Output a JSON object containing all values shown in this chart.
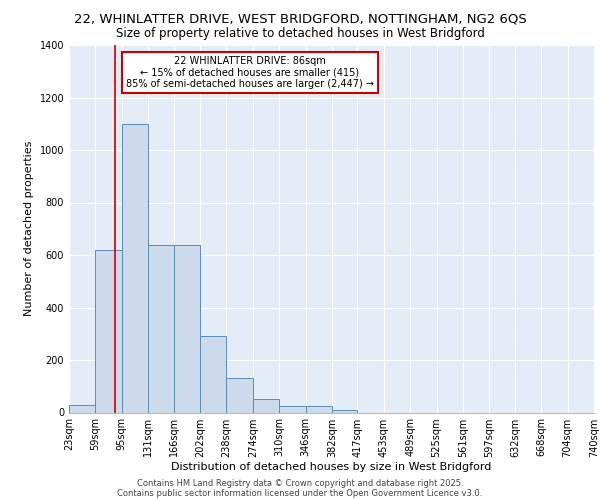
{
  "title1": "22, WHINLATTER DRIVE, WEST BRIDGFORD, NOTTINGHAM, NG2 6QS",
  "title2": "Size of property relative to detached houses in West Bridgford",
  "xlabel": "Distribution of detached houses by size in West Bridgford",
  "ylabel": "Number of detached properties",
  "bin_edges": [
    23,
    59,
    95,
    131,
    166,
    202,
    238,
    274,
    310,
    346,
    382,
    417,
    453,
    489,
    525,
    561,
    597,
    632,
    668,
    704,
    740
  ],
  "bar_heights": [
    30,
    620,
    1100,
    640,
    640,
    290,
    130,
    50,
    25,
    25,
    10,
    0,
    0,
    0,
    0,
    0,
    0,
    0,
    0,
    0
  ],
  "bar_color": "#ccdaeb",
  "bar_edge_color": "#5b8db8",
  "bg_color": "#e4ecf7",
  "grid_color": "#ffffff",
  "red_line_x": 86,
  "ylim": [
    0,
    1400
  ],
  "yticks": [
    0,
    200,
    400,
    600,
    800,
    1000,
    1200,
    1400
  ],
  "annotation_title": "22 WHINLATTER DRIVE: 86sqm",
  "annotation_line1": "← 15% of detached houses are smaller (415)",
  "annotation_line2": "85% of semi-detached houses are larger (2,447) →",
  "annotation_box_color": "#ffffff",
  "annotation_box_edge": "#cc0000",
  "footer1": "Contains HM Land Registry data © Crown copyright and database right 2025.",
  "footer2": "Contains public sector information licensed under the Open Government Licence v3.0.",
  "title1_fontsize": 9.5,
  "title2_fontsize": 8.5,
  "tick_fontsize": 7,
  "xlabel_fontsize": 8,
  "ylabel_fontsize": 8,
  "annotation_fontsize": 7,
  "footer_fontsize": 6
}
